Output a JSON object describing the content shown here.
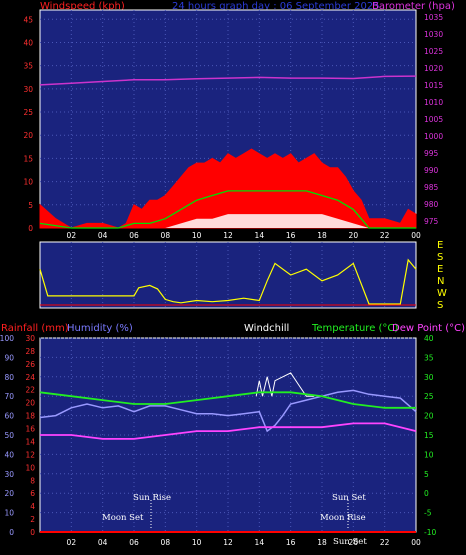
{
  "header": {
    "windspeed_label": "Windspeed (kph)",
    "graph_title": "24 hours graph day : 06 September 2025",
    "barometer_label": "Barometer (hpa)"
  },
  "bottom_labels": {
    "rainfall": "Rainfall (mm)",
    "humidity": "Humidity (%)",
    "windchill": "Windchill",
    "temperature": "Temperature (°C)",
    "dewpoint": "Dew Point (°C)"
  },
  "compass": [
    "E",
    "S",
    "E",
    "N",
    "W",
    "S"
  ],
  "x_ticks": [
    "02",
    "04",
    "06",
    "08",
    "10",
    "12",
    "14",
    "16",
    "18",
    "20",
    "22",
    "00"
  ],
  "annotations": {
    "sun_rise": "Sun Rise",
    "sun_set": "Sun Set",
    "moon_set": "Moon Set",
    "moon_rise": "Moon Rise",
    "sun_set_overlap": "Sun Set"
  },
  "colors": {
    "panel_bg": "#1a237e",
    "grid": "#4a57b8",
    "wind_max": "#ff0000",
    "wind_avg": "#00e000",
    "wind_min": "#ffffff",
    "barometer": "#cc33cc",
    "direction": "#ffff00",
    "rainfall": "#ff0000",
    "humidity": "#9999ff",
    "windchill": "#ffffff",
    "temperature": "#22ee22",
    "dewpoint": "#ff44ff"
  },
  "chart_data": [
    {
      "type": "line",
      "title": "24 hours graph day : 06 September 2025",
      "x_unit": "hour",
      "left_axis": {
        "label": "Windspeed (kph)",
        "ylim": [
          0,
          47
        ],
        "ticks": [
          0,
          5,
          10,
          15,
          20,
          25,
          30,
          35,
          40,
          45
        ]
      },
      "right_axis": {
        "label": "Barometer (hpa)",
        "ylim": [
          973,
          1037
        ],
        "ticks": [
          975,
          980,
          985,
          990,
          995,
          1000,
          1005,
          1010,
          1015,
          1020,
          1025,
          1030,
          1035
        ]
      },
      "series": [
        {
          "name": "Gust",
          "axis": "left",
          "x": [
            0,
            1,
            1.5,
            2,
            3,
            4,
            5,
            5.5,
            6,
            6.5,
            7,
            7.5,
            8,
            8.5,
            9,
            9.5,
            10,
            10.5,
            11,
            11.5,
            12,
            12.5,
            13,
            13.5,
            14,
            14.5,
            15,
            15.5,
            16,
            16.5,
            17,
            17.5,
            18,
            18.5,
            19,
            19.5,
            20,
            20.5,
            21,
            22,
            23,
            23.5,
            24
          ],
          "y": [
            5,
            2,
            1,
            0,
            1,
            1,
            0,
            1,
            5,
            4,
            6,
            6,
            7,
            9,
            11,
            13,
            14,
            14,
            15,
            14,
            16,
            15,
            16,
            17,
            16,
            15,
            16,
            15,
            16,
            14,
            15,
            16,
            14,
            13,
            13,
            11,
            8,
            6,
            2,
            2,
            1,
            4,
            3
          ]
        },
        {
          "name": "Average",
          "axis": "left",
          "x": [
            0,
            2,
            5,
            6,
            7,
            8,
            9,
            9.5,
            10,
            11,
            12,
            13,
            14,
            15,
            16,
            17,
            18,
            19,
            20,
            20.5,
            21,
            24
          ],
          "y": [
            1,
            0,
            0,
            1,
            1,
            2,
            4,
            5,
            6,
            7,
            8,
            8,
            8,
            8,
            8,
            8,
            7,
            6,
            4,
            2,
            0,
            0
          ]
        },
        {
          "name": "Minimum",
          "axis": "left",
          "x": [
            0,
            8,
            9,
            10,
            11,
            12,
            13,
            14,
            15,
            16,
            17,
            18,
            19,
            20,
            21,
            24
          ],
          "y": [
            0,
            0,
            1,
            2,
            2,
            3,
            3,
            3,
            3,
            3,
            3,
            3,
            2,
            1,
            0,
            0
          ]
        },
        {
          "name": "Barometer",
          "axis": "right",
          "x": [
            0,
            2,
            4,
            6,
            8,
            10,
            12,
            14,
            16,
            18,
            20,
            22,
            24
          ],
          "y": [
            1015,
            1015.5,
            1016,
            1016.5,
            1016.5,
            1016.8,
            1017,
            1017.2,
            1017,
            1017,
            1016.9,
            1017.5,
            1017.6
          ]
        }
      ]
    },
    {
      "type": "line",
      "title": "",
      "x_unit": "hour",
      "y_axis": {
        "labels": [
          "E",
          "S",
          "E",
          "N",
          "W",
          "S"
        ],
        "meaning": "wind direction"
      },
      "series": [
        {
          "name": "Direction",
          "x": [
            0,
            0.5,
            2,
            3,
            4,
            4.5,
            6,
            6.3,
            7,
            7.5,
            8,
            8.5,
            9,
            10,
            11,
            12,
            13,
            14,
            14.5,
            15,
            16,
            17,
            18,
            19,
            20,
            21,
            22,
            23,
            23.5,
            24
          ],
          "y": [
            2,
            4.3,
            4.3,
            4.3,
            4.3,
            4.3,
            4.3,
            3.6,
            3.4,
            3.7,
            4.6,
            4.8,
            4.9,
            4.7,
            4.8,
            4.7,
            4.5,
            4.7,
            3,
            1.5,
            2.5,
            2,
            3,
            2.5,
            1.5,
            5,
            5,
            5,
            1.2,
            2
          ]
        }
      ]
    },
    {
      "type": "line",
      "title": "",
      "x_unit": "hour",
      "left_axis": {
        "label": "Humidity (%)",
        "ylim": [
          0,
          100
        ],
        "ticks": [
          0,
          10,
          20,
          30,
          40,
          50,
          60,
          70,
          80,
          90,
          100
        ]
      },
      "rain_axis": {
        "label": "Rainfall (mm)",
        "ylim": [
          0,
          30
        ],
        "ticks": [
          0,
          2,
          4,
          6,
          8,
          10,
          12,
          14,
          16,
          18,
          20,
          22,
          24,
          26,
          28,
          30
        ]
      },
      "right_axis": {
        "label": "Temperature (°C)",
        "ylim": [
          -10,
          40
        ],
        "ticks": [
          -10,
          -5,
          0,
          5,
          10,
          15,
          20,
          25,
          30,
          35,
          40
        ]
      },
      "series": [
        {
          "name": "Rainfall (mm)",
          "axis": "rain",
          "x": [
            0,
            24
          ],
          "y": [
            0,
            0
          ]
        },
        {
          "name": "Humidity (%)",
          "axis": "left",
          "x": [
            0,
            1,
            2,
            3,
            4,
            5,
            6,
            7,
            8,
            9,
            10,
            11,
            12,
            13,
            14,
            14.5,
            15,
            15.5,
            16,
            17,
            18,
            19,
            20,
            21,
            22,
            23,
            24
          ],
          "y": [
            59,
            60,
            64,
            66,
            64,
            65,
            62,
            65,
            65,
            63,
            61,
            61,
            60,
            61,
            62,
            52,
            55,
            60,
            66,
            68,
            70,
            72,
            73,
            71,
            70,
            69,
            62
          ]
        },
        {
          "name": "Windchill",
          "axis": "right",
          "x": [
            13.8,
            14,
            14.2,
            14.5,
            14.8,
            15,
            15.5,
            16,
            16.5,
            17,
            17.5
          ],
          "y": [
            25,
            29,
            25,
            30,
            25,
            29,
            30,
            31,
            28,
            25,
            25
          ]
        },
        {
          "name": "Temperature (°C)",
          "axis": "right",
          "x": [
            0,
            2,
            4,
            6,
            8,
            10,
            12,
            14,
            16,
            18,
            20,
            22,
            24
          ],
          "y": [
            26,
            25,
            24,
            23,
            23,
            24,
            25,
            26,
            26,
            25,
            23,
            22,
            22
          ]
        },
        {
          "name": "Dew Point (°C)",
          "axis": "right",
          "x": [
            0,
            2,
            4,
            6,
            8,
            10,
            12,
            14,
            16,
            18,
            20,
            22,
            24
          ],
          "y": [
            15,
            15,
            14,
            14,
            15,
            16,
            16,
            17,
            17,
            17,
            18,
            18,
            16
          ]
        }
      ],
      "events": [
        {
          "label": "Sun Rise",
          "x": 6.8
        },
        {
          "label": "Moon Set",
          "x": 5
        },
        {
          "label": "Sun Set",
          "x": 19.7
        },
        {
          "label": "Moon Rise",
          "x": 19.5
        },
        {
          "label": "Sun Set",
          "x": 20.5
        }
      ]
    }
  ]
}
